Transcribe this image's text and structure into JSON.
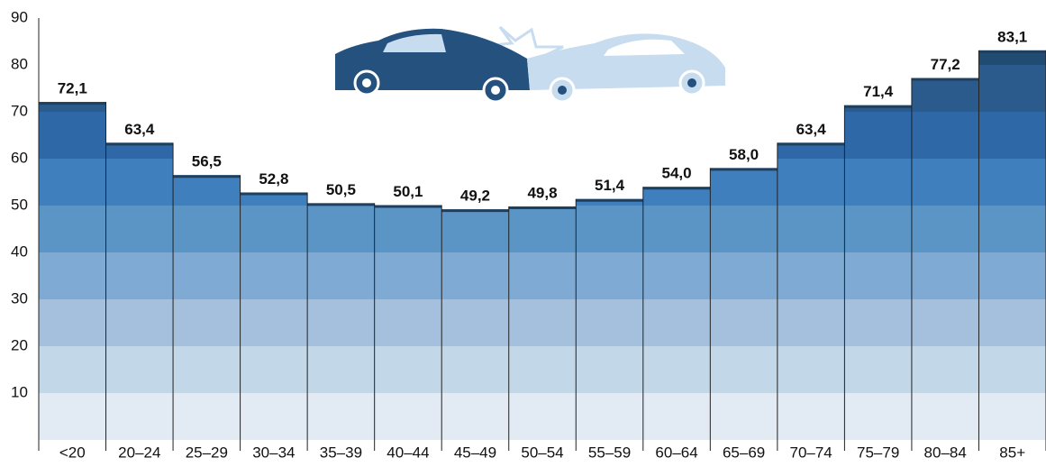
{
  "chart_data": {
    "type": "bar",
    "categories": [
      "<20",
      "20–24",
      "25–29",
      "30–34",
      "35–39",
      "40–44",
      "45–49",
      "50–54",
      "55–59",
      "60–64",
      "65–69",
      "70–74",
      "75–79",
      "80–84",
      "85+"
    ],
    "values": [
      72.1,
      63.4,
      56.5,
      52.8,
      50.5,
      50.1,
      49.2,
      49.8,
      51.4,
      54.0,
      58.0,
      63.4,
      71.4,
      77.2,
      83.1
    ],
    "value_labels": [
      "72,1",
      "63,4",
      "56,5",
      "52,8",
      "50,5",
      "50,1",
      "49,2",
      "49,8",
      "51,4",
      "54,0",
      "58,0",
      "63,4",
      "71,4",
      "77,2",
      "83,1"
    ],
    "ylim": [
      0,
      90
    ],
    "yticks": [
      10,
      20,
      30,
      40,
      50,
      60,
      70,
      80,
      90
    ],
    "band_colors": [
      "#e2eaf3",
      "#c2d7e7",
      "#a4c0dc",
      "#7eaad3",
      "#5a95c6",
      "#3f7fbe",
      "#2f68a6",
      "#2a5b8c",
      "#204b72"
    ],
    "top_color": "#1f3f5f"
  }
}
